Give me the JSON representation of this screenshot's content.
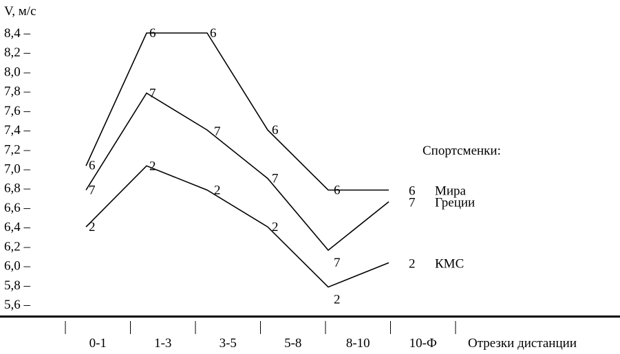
{
  "chart_data": {
    "type": "line",
    "ylabel": "V, м/с",
    "xlabel": "Отрезки дистанции",
    "yticks": [
      "8,4",
      "8,2",
      "8,0",
      "7,8",
      "7,6",
      "7,4",
      "7,2",
      "7,0",
      "6,8",
      "6,6",
      "6,4",
      "6,2",
      "6,0",
      "5,8",
      "5,6"
    ],
    "ytick_values": [
      8.4,
      8.2,
      8.0,
      7.8,
      7.6,
      7.4,
      7.2,
      7.0,
      6.8,
      6.6,
      6.4,
      6.2,
      6.0,
      5.8,
      5.6
    ],
    "ytick_suffix": " –",
    "ylim": [
      5.6,
      8.4
    ],
    "categories": [
      "0-1",
      "1-3",
      "3-5",
      "5-8",
      "8-10",
      "10-Ф"
    ],
    "legend_title": "Спортсменки:",
    "series": [
      {
        "marker": "6",
        "name": "Мира",
        "values": [
          7.03,
          8.4,
          8.4,
          7.4,
          6.78,
          6.78
        ],
        "point_labels": [
          "6",
          "6",
          "6",
          "6",
          "6"
        ]
      },
      {
        "marker": "7",
        "name": "Греции",
        "values": [
          6.78,
          7.78,
          7.4,
          6.9,
          6.16,
          6.66
        ],
        "point_labels": [
          "7",
          "7",
          "7",
          "7",
          "7"
        ]
      },
      {
        "marker": "2",
        "name": "КМС",
        "values": [
          6.4,
          7.03,
          6.78,
          6.4,
          5.78,
          6.03
        ],
        "point_labels": [
          "2",
          "2",
          "2",
          "2",
          "2"
        ]
      }
    ]
  }
}
